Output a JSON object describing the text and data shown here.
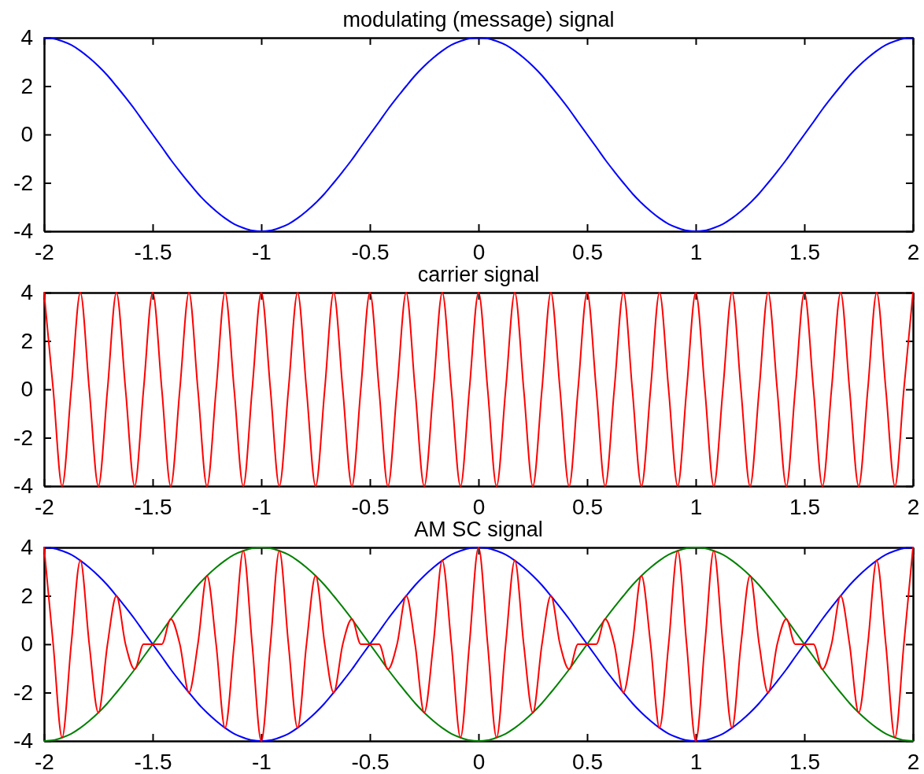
{
  "chart_data": [
    {
      "type": "line",
      "title": "modulating (message) signal",
      "xlim": [
        -2,
        2
      ],
      "ylim": [
        -4,
        4
      ],
      "xticks": [
        -2,
        -1.5,
        -1,
        -0.5,
        0,
        0.5,
        1,
        1.5,
        2
      ],
      "yticks": [
        -4,
        -2,
        0,
        2,
        4
      ],
      "x": [
        -2,
        -1.958,
        -1.917,
        -1.875,
        -1.833,
        -1.792,
        -1.75,
        -1.708,
        -1.667,
        -1.625,
        -1.583,
        -1.542,
        -1.5,
        -1.458,
        -1.417,
        -1.375,
        -1.333,
        -1.292,
        -1.25,
        -1.208,
        -1.167,
        -1.125,
        -1.083,
        -1.042,
        -1,
        -0.958,
        -0.917,
        -0.875,
        -0.833,
        -0.792,
        -0.75,
        -0.708,
        -0.667,
        -0.625,
        -0.583,
        -0.542,
        -0.5,
        -0.458,
        -0.417,
        -0.375,
        -0.333,
        -0.292,
        -0.25,
        -0.208,
        -0.167,
        -0.125,
        -0.083,
        -0.042,
        0,
        0.042,
        0.083,
        0.125,
        0.167,
        0.208,
        0.25,
        0.292,
        0.333,
        0.375,
        0.417,
        0.458,
        0.5,
        0.542,
        0.583,
        0.625,
        0.667,
        0.708,
        0.75,
        0.792,
        0.833,
        0.875,
        0.917,
        0.958,
        1,
        1.042,
        1.083,
        1.125,
        1.167,
        1.208,
        1.25,
        1.292,
        1.333,
        1.375,
        1.417,
        1.458,
        1.5,
        1.542,
        1.583,
        1.625,
        1.667,
        1.708,
        1.75,
        1.792,
        1.833,
        1.875,
        1.917,
        1.958,
        2
      ],
      "series": [
        {
          "color": "#0000ff",
          "values": [
            4,
            3.97,
            3.86,
            3.7,
            3.46,
            3.17,
            2.83,
            2.44,
            2,
            1.53,
            1.04,
            0.52,
            0,
            -0.52,
            -1.04,
            -1.53,
            -2,
            -2.44,
            -2.83,
            -3.17,
            -3.46,
            -3.7,
            -3.86,
            -3.97,
            -4,
            -3.97,
            -3.86,
            -3.7,
            -3.46,
            -3.17,
            -2.83,
            -2.44,
            -2,
            -1.53,
            -1.04,
            -0.52,
            0,
            0.52,
            1.04,
            1.53,
            2,
            2.44,
            2.83,
            3.17,
            3.46,
            3.7,
            3.86,
            3.97,
            4,
            3.97,
            3.86,
            3.7,
            3.46,
            3.17,
            2.83,
            2.44,
            2,
            1.53,
            1.04,
            0.52,
            0,
            -0.52,
            -1.04,
            -1.53,
            -2,
            -2.44,
            -2.83,
            -3.17,
            -3.46,
            -3.7,
            -3.86,
            -3.97,
            -4,
            -3.97,
            -3.86,
            -3.7,
            -3.46,
            -3.17,
            -2.83,
            -2.44,
            -2,
            -1.53,
            -1.04,
            -0.52,
            0,
            0.52,
            1.04,
            1.53,
            2,
            2.44,
            2.83,
            3.17,
            3.46,
            3.7,
            3.86,
            3.97,
            4
          ]
        }
      ]
    },
    {
      "type": "line",
      "title": "carrier signal",
      "xlim": [
        -2,
        2
      ],
      "ylim": [
        -4,
        4
      ],
      "xticks": [
        -2,
        -1.5,
        -1,
        -0.5,
        0,
        0.5,
        1,
        1.5,
        2
      ],
      "yticks": [
        -4,
        -2,
        0,
        2,
        4
      ],
      "x": [
        -2,
        -1.958,
        -1.917,
        -1.875,
        -1.833,
        -1.792,
        -1.75,
        -1.708,
        -1.667,
        -1.625,
        -1.583,
        -1.542,
        -1.5,
        -1.458,
        -1.417,
        -1.375,
        -1.333,
        -1.292,
        -1.25,
        -1.208,
        -1.167,
        -1.125,
        -1.083,
        -1.042,
        -1,
        -0.958,
        -0.917,
        -0.875,
        -0.833,
        -0.792,
        -0.75,
        -0.708,
        -0.667,
        -0.625,
        -0.583,
        -0.542,
        -0.5,
        -0.458,
        -0.417,
        -0.375,
        -0.333,
        -0.292,
        -0.25,
        -0.208,
        -0.167,
        -0.125,
        -0.083,
        -0.042,
        0,
        0.042,
        0.083,
        0.125,
        0.167,
        0.208,
        0.25,
        0.292,
        0.333,
        0.375,
        0.417,
        0.458,
        0.5,
        0.542,
        0.583,
        0.625,
        0.667,
        0.708,
        0.75,
        0.792,
        0.833,
        0.875,
        0.917,
        0.958,
        1,
        1.042,
        1.083,
        1.125,
        1.167,
        1.208,
        1.25,
        1.292,
        1.333,
        1.375,
        1.417,
        1.458,
        1.5,
        1.542,
        1.583,
        1.625,
        1.667,
        1.708,
        1.75,
        1.792,
        1.833,
        1.875,
        1.917,
        1.958,
        2
      ],
      "series": [
        {
          "color": "#ff0000",
          "values": [
            4,
            0,
            -4,
            0,
            4,
            0,
            -4,
            0,
            4,
            0,
            -4,
            0,
            4,
            0,
            -4,
            0,
            4,
            0,
            -4,
            0,
            4,
            0,
            -4,
            0,
            4,
            0,
            -4,
            0,
            4,
            0,
            -4,
            0,
            4,
            0,
            -4,
            0,
            4,
            0,
            -4,
            0,
            4,
            0,
            -4,
            0,
            4,
            0,
            -4,
            0,
            4,
            0,
            -4,
            0,
            4,
            0,
            -4,
            0,
            4,
            0,
            -4,
            0,
            4,
            0,
            -4,
            0,
            4,
            0,
            -4,
            0,
            4,
            0,
            -4,
            0,
            4,
            0,
            -4,
            0,
            4,
            0,
            -4,
            0,
            4,
            0,
            -4,
            0,
            4,
            0,
            -4,
            0,
            4,
            0,
            -4,
            0,
            4,
            0,
            -4,
            0,
            4
          ]
        }
      ]
    },
    {
      "type": "line",
      "title": "AM SC signal",
      "xlim": [
        -2,
        2
      ],
      "ylim": [
        -4,
        4
      ],
      "xticks": [
        -2,
        -1.5,
        -1,
        -0.5,
        0,
        0.5,
        1,
        1.5,
        2
      ],
      "yticks": [
        -4,
        -2,
        0,
        2,
        4
      ],
      "x": [
        -2,
        -1.958,
        -1.917,
        -1.875,
        -1.833,
        -1.792,
        -1.75,
        -1.708,
        -1.667,
        -1.625,
        -1.583,
        -1.542,
        -1.5,
        -1.458,
        -1.417,
        -1.375,
        -1.333,
        -1.292,
        -1.25,
        -1.208,
        -1.167,
        -1.125,
        -1.083,
        -1.042,
        -1,
        -0.958,
        -0.917,
        -0.875,
        -0.833,
        -0.792,
        -0.75,
        -0.708,
        -0.667,
        -0.625,
        -0.583,
        -0.542,
        -0.5,
        -0.458,
        -0.417,
        -0.375,
        -0.333,
        -0.292,
        -0.25,
        -0.208,
        -0.167,
        -0.125,
        -0.083,
        -0.042,
        0,
        0.042,
        0.083,
        0.125,
        0.167,
        0.208,
        0.25,
        0.292,
        0.333,
        0.375,
        0.417,
        0.458,
        0.5,
        0.542,
        0.583,
        0.625,
        0.667,
        0.708,
        0.75,
        0.792,
        0.833,
        0.875,
        0.917,
        0.958,
        1,
        1.042,
        1.083,
        1.125,
        1.167,
        1.208,
        1.25,
        1.292,
        1.333,
        1.375,
        1.417,
        1.458,
        1.5,
        1.542,
        1.583,
        1.625,
        1.667,
        1.708,
        1.75,
        1.792,
        1.833,
        1.875,
        1.917,
        1.958,
        2
      ],
      "series": [
        {
          "color": "#0000ff",
          "values": [
            4,
            3.97,
            3.86,
            3.7,
            3.46,
            3.17,
            2.83,
            2.44,
            2,
            1.53,
            1.04,
            0.52,
            0,
            -0.52,
            -1.04,
            -1.53,
            -2,
            -2.44,
            -2.83,
            -3.17,
            -3.46,
            -3.7,
            -3.86,
            -3.97,
            -4,
            -3.97,
            -3.86,
            -3.7,
            -3.46,
            -3.17,
            -2.83,
            -2.44,
            -2,
            -1.53,
            -1.04,
            -0.52,
            0,
            0.52,
            1.04,
            1.53,
            2,
            2.44,
            2.83,
            3.17,
            3.46,
            3.7,
            3.86,
            3.97,
            4,
            3.97,
            3.86,
            3.7,
            3.46,
            3.17,
            2.83,
            2.44,
            2,
            1.53,
            1.04,
            0.52,
            0,
            -0.52,
            -1.04,
            -1.53,
            -2,
            -2.44,
            -2.83,
            -3.17,
            -3.46,
            -3.7,
            -3.86,
            -3.97,
            -4,
            -3.97,
            -3.86,
            -3.7,
            -3.46,
            -3.17,
            -2.83,
            -2.44,
            -2,
            -1.53,
            -1.04,
            -0.52,
            0,
            0.52,
            1.04,
            1.53,
            2,
            2.44,
            2.83,
            3.17,
            3.46,
            3.7,
            3.86,
            3.97,
            4
          ]
        },
        {
          "color": "#008000",
          "values": [
            -4,
            -3.97,
            -3.86,
            -3.7,
            -3.46,
            -3.17,
            -2.83,
            -2.44,
            -2,
            -1.53,
            -1.04,
            -0.52,
            0,
            0.52,
            1.04,
            1.53,
            2,
            2.44,
            2.83,
            3.17,
            3.46,
            3.7,
            3.86,
            3.97,
            4,
            3.97,
            3.86,
            3.7,
            3.46,
            3.17,
            2.83,
            2.44,
            2,
            1.53,
            1.04,
            0.52,
            0,
            -0.52,
            -1.04,
            -1.53,
            -2,
            -2.44,
            -2.83,
            -3.17,
            -3.46,
            -3.7,
            -3.86,
            -3.97,
            -4,
            -3.97,
            -3.86,
            -3.7,
            -3.46,
            -3.17,
            -2.83,
            -2.44,
            -2,
            -1.53,
            -1.04,
            -0.52,
            0,
            0.52,
            1.04,
            1.53,
            2,
            2.44,
            2.83,
            3.17,
            3.46,
            3.7,
            3.86,
            3.97,
            4,
            3.97,
            3.86,
            3.7,
            3.46,
            3.17,
            2.83,
            2.44,
            2,
            1.53,
            1.04,
            0.52,
            0,
            -0.52,
            -1.04,
            -1.53,
            -2,
            -2.44,
            -2.83,
            -3.17,
            -3.46,
            -3.7,
            -3.86,
            -3.97,
            -4
          ]
        },
        {
          "color": "#ff0000",
          "values": [
            4,
            0,
            -3.86,
            0,
            3.46,
            0,
            -2.83,
            0,
            2,
            0,
            -1.04,
            0,
            0,
            0,
            1.04,
            0,
            -2,
            0,
            2.83,
            0,
            -3.46,
            0,
            3.86,
            0,
            -4,
            0,
            3.86,
            0,
            -3.46,
            0,
            2.83,
            0,
            -2,
            0,
            1.04,
            0,
            0,
            0,
            -1.04,
            0,
            2,
            0,
            -2.83,
            0,
            3.46,
            0,
            -3.86,
            0,
            4,
            0,
            -3.86,
            0,
            3.46,
            0,
            -2.83,
            0,
            2,
            0,
            -1.04,
            0,
            0,
            0,
            1.04,
            0,
            -2,
            0,
            2.83,
            0,
            -3.46,
            0,
            3.86,
            0,
            -4,
            0,
            3.86,
            0,
            -3.46,
            0,
            2.83,
            0,
            -2,
            0,
            1.04,
            0,
            0,
            0,
            -1.04,
            0,
            2,
            0,
            -2.83,
            0,
            3.46,
            0,
            -3.86,
            0,
            4
          ]
        }
      ]
    }
  ]
}
